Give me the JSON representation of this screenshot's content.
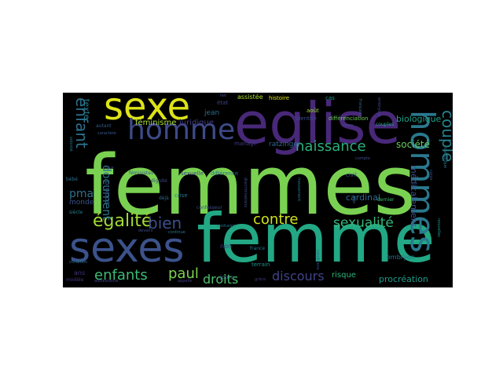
{
  "colors": {
    "background": "#000000",
    "page": "#ffffff"
  },
  "words": [
    {
      "text": "femmes",
      "color": "#7ad151"
    },
    {
      "text": "femme",
      "color": "#22a884"
    },
    {
      "text": "eglise",
      "color": "#482878"
    },
    {
      "text": "hommes",
      "color": "#2a788e"
    },
    {
      "text": "sexes",
      "color": "#3b528b"
    },
    {
      "text": "sexe",
      "color": "#dde318"
    },
    {
      "text": "homme",
      "color": "#3e4a89"
    },
    {
      "text": "égalité",
      "color": "#a2da37"
    },
    {
      "text": "enfant",
      "color": "#2c728e"
    },
    {
      "text": "naissance",
      "color": "#29af7f"
    },
    {
      "text": "couple",
      "color": "#26828e"
    },
    {
      "text": "sexualité",
      "color": "#35b779"
    },
    {
      "text": "contre",
      "color": "#d0e11c"
    },
    {
      "text": "bien",
      "color": "#3d4e8a"
    },
    {
      "text": "enfants",
      "color": "#3dbc74"
    },
    {
      "text": "paul",
      "color": "#7fd34e"
    },
    {
      "text": "droits",
      "color": "#4ac16d"
    },
    {
      "text": "discours",
      "color": "#404387"
    },
    {
      "text": "document",
      "color": "#2a768e"
    },
    {
      "text": "pma",
      "color": "#2d718e"
    },
    {
      "text": "société",
      "color": "#65cb5e"
    },
    {
      "text": "biologique",
      "color": "#1fa088"
    },
    {
      "text": "féminisme",
      "color": "#a8db34"
    },
    {
      "text": "juridique",
      "color": "#433e85"
    },
    {
      "text": "jean",
      "color": "#2e6d8e"
    },
    {
      "text": "mariage",
      "color": "#443983"
    },
    {
      "text": "ratzinger",
      "color": "#32658e"
    },
    {
      "text": "texte",
      "color": "#277f8e"
    },
    {
      "text": "cardinal",
      "color": "#2f6c8e"
    },
    {
      "text": "médicalement",
      "color": "#3b528b"
    },
    {
      "text": "procréation",
      "color": "#1e9b8a"
    },
    {
      "text": "risque",
      "color": "#2fb47c"
    },
    {
      "text": "embryon",
      "color": "#2d708e"
    },
    {
      "text": "propos",
      "color": "#38598c"
    },
    {
      "text": "monde",
      "color": "#3a548c"
    },
    {
      "text": "ans",
      "color": "#46327e"
    },
    {
      "text": "non",
      "color": "#433e85"
    },
    {
      "text": "histoire",
      "color": "#dde318"
    },
    {
      "text": "assistée",
      "color": "#addc30"
    },
    {
      "text": "cas",
      "color": "#1f9e89"
    },
    {
      "text": "identité",
      "color": "#3e4a89"
    },
    {
      "text": "différenciation",
      "color": "#6ccd5a"
    },
    {
      "text": "sexuelle",
      "color": "#3f4788"
    },
    {
      "text": "différence",
      "color": "#306a8e"
    },
    {
      "text": "féministes",
      "color": "#3b528b"
    },
    {
      "text": "terrain",
      "color": "#21918c"
    },
    {
      "text": "jours",
      "color": "#355f8d"
    },
    {
      "text": "août",
      "color": "#9dd93b"
    },
    {
      "text": "état",
      "color": "#404387"
    },
    {
      "text": "autant",
      "color": "#365c8d"
    },
    {
      "text": "caractère",
      "color": "#38588c"
    },
    {
      "text": "siècle",
      "color": "#26828e"
    },
    {
      "text": "modèle",
      "color": "#453581"
    },
    {
      "text": "condition",
      "color": "#2d708e"
    },
    {
      "text": "bébé",
      "color": "#2c728e"
    },
    {
      "text": "face",
      "color": "#3f4788"
    },
    {
      "text": "crise",
      "color": "#2a788e"
    },
    {
      "text": "déjà",
      "color": "#31688e"
    },
    {
      "text": "confesseur",
      "color": "#3e4c8a"
    },
    {
      "text": "dignité",
      "color": "#3e4989"
    },
    {
      "text": "civil",
      "color": "#3a538b"
    },
    {
      "text": "france",
      "color": "#2a768e"
    },
    {
      "text": "confusion",
      "color": "#2a788e"
    },
    {
      "text": "dernier",
      "color": "#3dbc74"
    },
    {
      "text": "grâce",
      "color": "#46337f"
    },
    {
      "text": "appelle",
      "color": "#433d84"
    },
    {
      "text": "couples",
      "color": "#22a884"
    },
    {
      "text": "viens",
      "color": "#3b518b"
    },
    {
      "text": "compte",
      "color": "#3e4c8a"
    },
    {
      "text": "français",
      "color": "#31678e"
    },
    {
      "text": "catholique",
      "color": "#2b748e"
    },
    {
      "text": "nouvelles",
      "color": "#1f968b"
    },
    {
      "text": "discriminations",
      "color": "#3a548c"
    },
    {
      "text": "devenir",
      "color": "#3e4a89"
    },
    {
      "text": "continue",
      "color": "#2a788e"
    },
    {
      "text": "adolescente",
      "color": "#3f4788"
    },
    {
      "text": "conditions",
      "color": "#39558c"
    },
    {
      "text": "embryons",
      "color": "#3e4a89"
    },
    {
      "text": "mouvement",
      "color": "#2a778e"
    },
    {
      "text": "corps",
      "color": "#3b528b"
    },
    {
      "text": "fait",
      "color": "#3e4a89"
    },
    {
      "text": "volonté",
      "color": "#2a778e"
    },
    {
      "text": "fille",
      "color": "#3b528b"
    }
  ]
}
